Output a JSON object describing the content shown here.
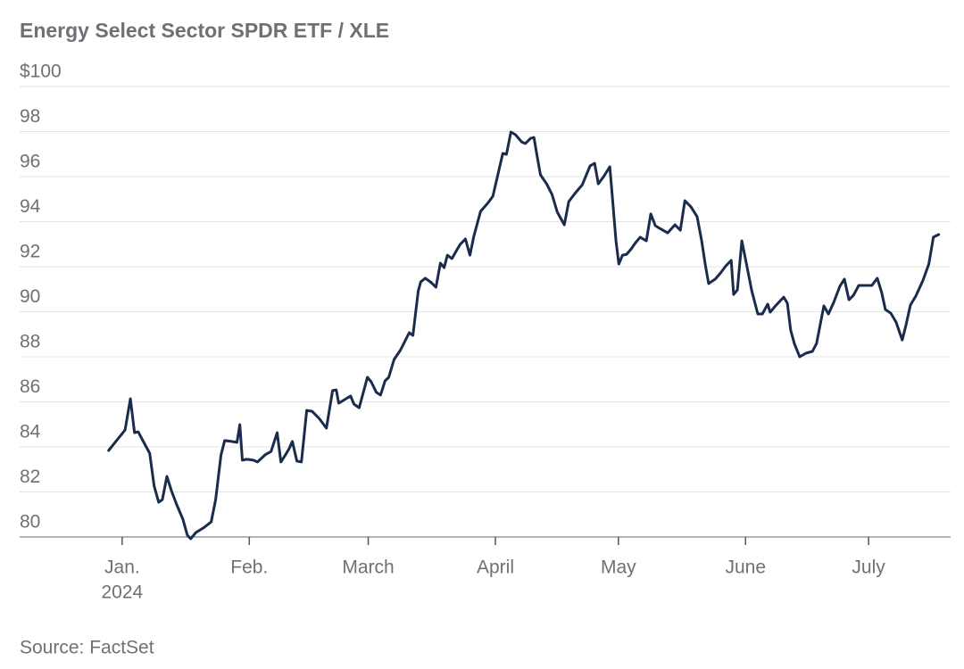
{
  "chart_data": {
    "type": "line",
    "title": "Energy Select Sector SPDR ETF / XLE",
    "source": "Source: FactSet",
    "x": [
      -2.3,
      1.7,
      3.0,
      4.0,
      4.9,
      6.4,
      7.7,
      8.8,
      9.9,
      10.8,
      11.9,
      13.0,
      14.3,
      15.8,
      16.9,
      17.7,
      19.0,
      20.8,
      22.7,
      23.8,
      25.1,
      26.0,
      27.7,
      29.0,
      29.7,
      30.3,
      31.4,
      33.0,
      34.0,
      35.8,
      37.3,
      38.8,
      39.7,
      40.8,
      41.7,
      42.5,
      43.6,
      44.7,
      46.0,
      47.3,
      49.0,
      50.8,
      52.3,
      53.2,
      53.8,
      55.6,
      56.7,
      57.5,
      58.8,
      60.8,
      61.7,
      63.0,
      64.0,
      65.1,
      66.0,
      67.3,
      68.8,
      70.1,
      71.0,
      71.9,
      73.2,
      73.8,
      74.9,
      76.4,
      77.5,
      78.6,
      79.5,
      80.3,
      81.4,
      82.5,
      83.4,
      84.7,
      85.8,
      86.7,
      88.4,
      90.1,
      91.4,
      93.0,
      93.8,
      94.7,
      95.8,
      96.9,
      98.4,
      99.3,
      100.6,
      101.4,
      102.1,
      103.0,
      104.5,
      105.8,
      107.1,
      108.8,
      109.9,
      111.4,
      113.2,
      114.0,
      115.1,
      116.2,
      117.1,
      118.4,
      119.9,
      120.6,
      121.4,
      122.1,
      123.0,
      124.0,
      125.1,
      126.2,
      127.3,
      128.8,
      129.9,
      131.0,
      132.1,
      134.0,
      135.8,
      137.1,
      138.2,
      139.7,
      141.2,
      142.3,
      143.2,
      144.0,
      145.6,
      146.9,
      148.2,
      149.5,
      150.1,
      151.0,
      152.1,
      153.4,
      154.5,
      156.0,
      157.1,
      158.4,
      159.0,
      160.3,
      162.3,
      163.2,
      164.0,
      164.9,
      166.2,
      167.7,
      169.3,
      170.3,
      172.1,
      173.2,
      174.5,
      176.0,
      177.1,
      178.2,
      179.3,
      180.6,
      182.1,
      183.8,
      185.1,
      186.2,
      187.1,
      188.4,
      189.7,
      191.2,
      192.1,
      193.2,
      194.5,
      196.2,
      197.7,
      198.8,
      200.1
    ],
    "series": [
      {
        "color": "#1b2b4b",
        "values": [
          83.84,
          84.75,
          86.14,
          84.63,
          84.67,
          84.16,
          83.72,
          82.26,
          81.54,
          81.66,
          82.69,
          82.06,
          81.43,
          80.79,
          80.08,
          79.92,
          80.2,
          80.4,
          80.67,
          81.66,
          83.64,
          84.28,
          84.24,
          84.2,
          84.99,
          83.41,
          83.45,
          83.41,
          83.33,
          83.64,
          83.8,
          84.63,
          83.33,
          83.64,
          83.92,
          84.24,
          83.37,
          83.33,
          85.62,
          85.58,
          85.27,
          84.83,
          86.5,
          86.53,
          85.94,
          86.14,
          86.26,
          85.9,
          85.74,
          87.09,
          86.89,
          86.42,
          86.3,
          86.93,
          87.09,
          87.88,
          88.28,
          88.75,
          89.07,
          88.95,
          90.93,
          91.33,
          91.49,
          91.29,
          91.09,
          92.16,
          91.96,
          92.51,
          92.36,
          92.71,
          92.99,
          93.23,
          92.51,
          93.31,
          94.46,
          94.81,
          95.13,
          96.4,
          97.03,
          96.99,
          97.98,
          97.86,
          97.54,
          97.47,
          97.7,
          97.74,
          96.99,
          96.08,
          95.68,
          95.21,
          94.42,
          93.86,
          94.89,
          95.25,
          95.64,
          96.0,
          96.48,
          96.59,
          95.68,
          96.0,
          96.44,
          94.93,
          93.15,
          92.12,
          92.51,
          92.55,
          92.79,
          93.07,
          93.31,
          93.15,
          94.34,
          93.82,
          93.7,
          93.5,
          93.86,
          93.62,
          94.93,
          94.65,
          94.22,
          93.15,
          92.08,
          91.25,
          91.45,
          91.72,
          92.04,
          92.28,
          90.77,
          90.97,
          93.15,
          91.96,
          90.93,
          89.9,
          89.9,
          90.34,
          89.98,
          90.26,
          90.65,
          90.38,
          89.19,
          88.59,
          88.0,
          88.16,
          88.24,
          88.59,
          90.26,
          89.9,
          90.42,
          91.13,
          91.45,
          90.53,
          90.73,
          91.17,
          91.17,
          91.17,
          91.49,
          90.85,
          90.1,
          89.94,
          89.54,
          88.75,
          89.39,
          90.3,
          90.69,
          91.37,
          92.12,
          93.31,
          93.43
        ]
      }
    ],
    "xlim": [
      -24,
      203
    ],
    "xticks": [
      {
        "value": 1,
        "label": "Jan.",
        "sublabel": "2024"
      },
      {
        "value": 32,
        "label": "Feb."
      },
      {
        "value": 61,
        "label": "March"
      },
      {
        "value": 92,
        "label": "April"
      },
      {
        "value": 122,
        "label": "May"
      },
      {
        "value": 153,
        "label": "June"
      },
      {
        "value": 183,
        "label": "July"
      }
    ],
    "ylim": [
      80,
      100
    ],
    "yticks": [
      80,
      82,
      84,
      86,
      88,
      90,
      92,
      94,
      96,
      98,
      {
        "value": 100,
        "label": "$100"
      }
    ],
    "grid": true
  }
}
